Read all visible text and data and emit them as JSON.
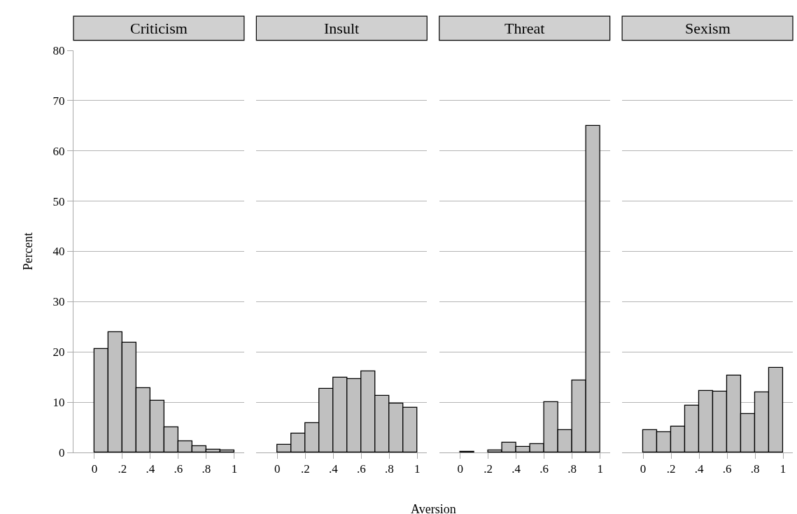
{
  "chart_data": [
    {
      "type": "histogram",
      "title": "Criticism",
      "ylabel": "Percent",
      "bins": [
        0,
        0.1,
        0.2,
        0.3,
        0.4,
        0.5,
        0.6,
        0.7,
        0.8,
        0.9,
        1
      ],
      "values": [
        20.6,
        24,
        21.8,
        12.8,
        10.3,
        5,
        2.2,
        1.2,
        0.6,
        0.4
      ],
      "color": "#c0c0c0",
      "xlim": [
        -0.15,
        1.07
      ],
      "ylim": [
        0,
        80
      ],
      "xticks": [
        0,
        {
          "value": 0.2,
          "label": ".2"
        },
        {
          "value": 0.4,
          "label": ".4"
        },
        {
          "value": 0.6,
          "label": ".6"
        },
        {
          "value": 0.8,
          "label": ".8"
        },
        1
      ],
      "yticks": [
        0,
        10,
        20,
        30,
        40,
        50,
        60,
        70,
        80
      ],
      "grid": "y"
    },
    {
      "type": "histogram",
      "title": "Insult",
      "xlabel": "Aversion",
      "bins": [
        0,
        0.1,
        0.2,
        0.3,
        0.4,
        0.5,
        0.6,
        0.7,
        0.8,
        0.9,
        1
      ],
      "values": [
        1.5,
        3.7,
        5.8,
        12.6,
        14.9,
        14.6,
        16.1,
        11.3,
        9.7,
        8.9
      ],
      "color": "#c0c0c0",
      "xlim": [
        -0.15,
        1.07
      ],
      "ylim": [
        0,
        80
      ],
      "xticks": [
        0,
        {
          "value": 0.2,
          "label": ".2"
        },
        {
          "value": 0.4,
          "label": ".4"
        },
        {
          "value": 0.6,
          "label": ".6"
        },
        {
          "value": 0.8,
          "label": ".8"
        },
        1
      ],
      "yticks": [
        0,
        10,
        20,
        30,
        40,
        50,
        60,
        70,
        80
      ],
      "grid": "y",
      "tick_labels": "x"
    },
    {
      "type": "histogram",
      "title": "Threat",
      "bins": [
        0,
        0.1,
        0.2,
        0.3,
        0.4,
        0.5,
        0.6,
        0.7,
        0.8,
        0.9,
        1
      ],
      "values": [
        0.2,
        0,
        0.4,
        1.9,
        1.1,
        1.7,
        10,
        4.5,
        14.4,
        65
      ],
      "color": "#c0c0c0",
      "xlim": [
        -0.15,
        1.07
      ],
      "ylim": [
        0,
        80
      ],
      "xticks": [
        0,
        {
          "value": 0.2,
          "label": ".2"
        },
        {
          "value": 0.4,
          "label": ".4"
        },
        {
          "value": 0.6,
          "label": ".6"
        },
        {
          "value": 0.8,
          "label": ".8"
        },
        1
      ],
      "yticks": [
        0,
        10,
        20,
        30,
        40,
        50,
        60,
        70,
        80
      ],
      "grid": "y",
      "tick_labels": "x"
    },
    {
      "type": "histogram",
      "title": "Sexism",
      "bins": [
        0,
        0.1,
        0.2,
        0.3,
        0.4,
        0.5,
        0.6,
        0.7,
        0.8,
        0.9,
        1
      ],
      "values": [
        4.4,
        4.0,
        5.2,
        9.3,
        12.2,
        12.1,
        15.3,
        7.7,
        11.9,
        16.8
      ],
      "color": "#c0c0c0",
      "xlim": [
        -0.15,
        1.07
      ],
      "ylim": [
        0,
        80
      ],
      "xticks": [
        0,
        {
          "value": 0.2,
          "label": ".2"
        },
        {
          "value": 0.4,
          "label": ".4"
        },
        {
          "value": 0.6,
          "label": ".6"
        },
        {
          "value": 0.8,
          "label": ".8"
        },
        1
      ],
      "yticks": [
        0,
        10,
        20,
        30,
        40,
        50,
        60,
        70,
        80
      ],
      "grid": "y",
      "tick_labels": "x"
    }
  ]
}
